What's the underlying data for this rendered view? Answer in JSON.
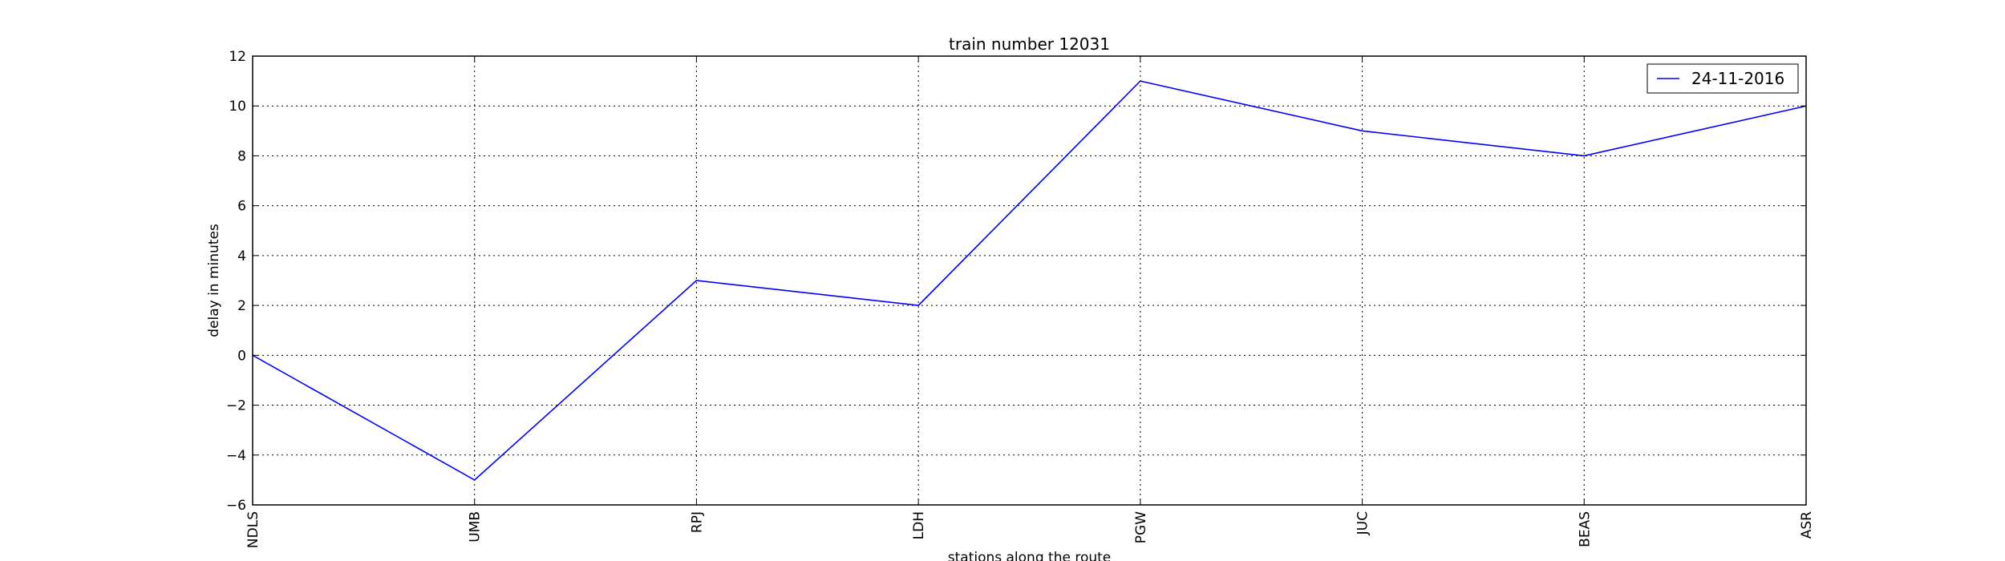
{
  "chart_data": {
    "type": "line",
    "title": "train number 12031",
    "xlabel": "stations along the route",
    "ylabel": "delay in minutes",
    "categories": [
      "NDLS",
      "UMB",
      "RPJ",
      "LDH",
      "PGW",
      "JUC",
      "BEAS",
      "ASR"
    ],
    "series": [
      {
        "name": "24-11-2016",
        "values": [
          0,
          -5,
          3,
          2,
          11,
          9,
          8,
          10
        ],
        "color": "#0000ff"
      }
    ],
    "ylim": [
      -6,
      12
    ],
    "yticks": [
      -6,
      -4,
      -2,
      0,
      2,
      4,
      6,
      8,
      10,
      12
    ],
    "ytick_labels": [
      "−6",
      "−4",
      "−2",
      "0",
      "2",
      "4",
      "6",
      "8",
      "10",
      "12"
    ],
    "grid": true,
    "legend_position": "top-right"
  }
}
